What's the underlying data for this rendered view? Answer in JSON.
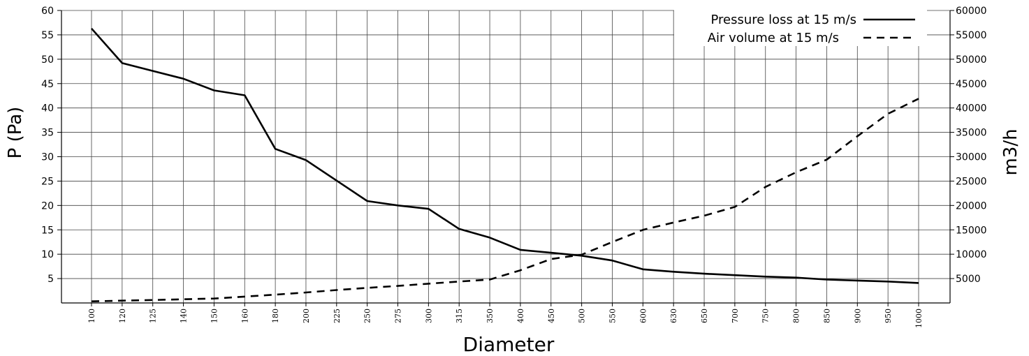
{
  "chart_data": {
    "type": "line",
    "xlabel": "Diameter",
    "ylabel": "P (Pa)",
    "y2label": "m3/h",
    "categories": [
      "100",
      "120",
      "125",
      "140",
      "150",
      "160",
      "180",
      "200",
      "225",
      "250",
      "275",
      "300",
      "315",
      "350",
      "400",
      "450",
      "500",
      "550",
      "600",
      "630",
      "650",
      "700",
      "750",
      "800",
      "850",
      "900",
      "950",
      "1000"
    ],
    "ylim": [
      0,
      60
    ],
    "y_ticks": [
      "5",
      "10",
      "15",
      "20",
      "25",
      "30",
      "35",
      "40",
      "45",
      "50",
      "55",
      "60"
    ],
    "y2lim": [
      0,
      60000
    ],
    "y2_ticks": [
      "5000",
      "10000",
      "15000",
      "20000",
      "25000",
      "30000",
      "35000",
      "40000",
      "45000",
      "50000",
      "55000",
      "60000"
    ],
    "grid": true,
    "legend_position": "top-right",
    "series": [
      {
        "name": "Pressure loss at 15 m/s",
        "axis": "left",
        "style": "solid",
        "values": [
          56.3,
          49.2,
          47.6,
          46.0,
          43.6,
          42.6,
          31.6,
          29.3,
          25.1,
          20.9,
          20.0,
          19.3,
          15.2,
          13.4,
          10.9,
          10.3,
          9.7,
          8.7,
          6.9,
          6.4,
          6.0,
          5.7,
          5.4,
          5.2,
          4.8,
          4.6,
          4.4,
          4.1
        ]
      },
      {
        "name": "Air volume at 15 m/s",
        "axis": "right",
        "style": "dashed",
        "values": [
          330,
          470,
          600,
          760,
          900,
          1300,
          1700,
          2150,
          2650,
          3100,
          3500,
          3950,
          4400,
          4800,
          6700,
          9000,
          9900,
          12500,
          15000,
          16500,
          17900,
          19700,
          23800,
          26800,
          29400,
          34200,
          38800,
          41900
        ]
      }
    ]
  }
}
